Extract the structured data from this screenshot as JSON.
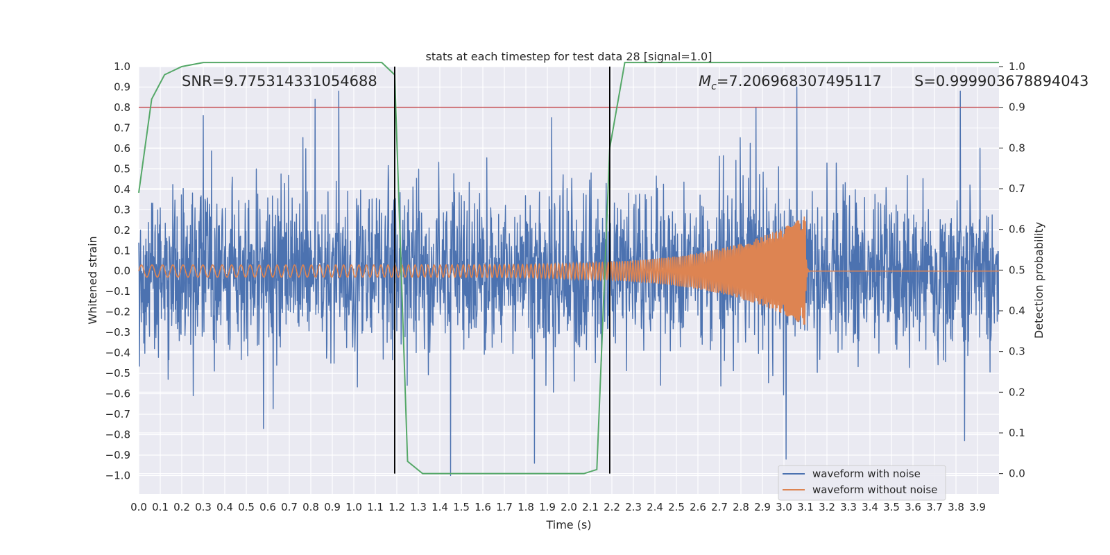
{
  "chart_data": {
    "type": "line",
    "title": "stats at each timestep for test data 28 [signal=1.0]",
    "xlabel": "Time (s)",
    "ylabel": "Whitened strain",
    "y2label": "Detection probability",
    "xlim": [
      0.0,
      4.0
    ],
    "ylim": [
      -1.09,
      1.0
    ],
    "y2lim": [
      -0.05,
      1.0
    ],
    "x_ticks": [
      "0.0",
      "0.1",
      "0.2",
      "0.3",
      "0.4",
      "0.5",
      "0.6",
      "0.7",
      "0.8",
      "0.9",
      "1.0",
      "1.1",
      "1.2",
      "1.3",
      "1.4",
      "1.5",
      "1.6",
      "1.7",
      "1.8",
      "1.9",
      "2.0",
      "2.1",
      "2.2",
      "2.3",
      "2.4",
      "2.5",
      "2.6",
      "2.7",
      "2.8",
      "2.9",
      "3.0",
      "3.1",
      "3.2",
      "3.3",
      "3.4",
      "3.5",
      "3.6",
      "3.7",
      "3.8",
      "3.9"
    ],
    "y_ticks": [
      "1.0",
      "0.9",
      "0.8",
      "0.7",
      "0.6",
      "0.5",
      "0.4",
      "0.3",
      "0.2",
      "0.1",
      "0.0",
      "−0.1",
      "−0.2",
      "−0.3",
      "−0.4",
      "−0.5",
      "−0.6",
      "−0.7",
      "−0.8",
      "−0.9",
      "−1.0"
    ],
    "y2_ticks": [
      "1.0",
      "0.9",
      "0.8",
      "0.7",
      "0.6",
      "0.5",
      "0.4",
      "0.3",
      "0.2",
      "0.1",
      "0.0"
    ],
    "grid": true,
    "legend_position": "bottom-right",
    "annotations": {
      "snr": "SNR=9.775314331054688",
      "mc": "=7.206968307495117",
      "mc_symbol": "M",
      "mc_sub": "c",
      "s": "S=0.999903678894043"
    },
    "threshold_y2": 0.9,
    "vertical_lines_x": [
      1.19,
      2.19
    ],
    "series": [
      {
        "name": "waveform with noise",
        "color": "#4c72b0",
        "description_type": "noise",
        "peaks": [
          [
            0.3,
            0.76
          ],
          [
            0.82,
            0.84
          ],
          [
            0.93,
            0.88
          ],
          [
            1.84,
            0.92
          ],
          [
            2.87,
            0.8
          ],
          [
            3.06,
            0.9
          ],
          [
            3.82,
            0.88
          ],
          [
            1.45,
            -1.0
          ],
          [
            1.84,
            -0.94
          ],
          [
            3.01,
            -0.92
          ],
          [
            3.84,
            -0.83
          ],
          [
            0.58,
            -0.77
          ]
        ]
      },
      {
        "name": "waveform without noise",
        "color": "#dd8452",
        "description_type": "chirp",
        "amplitude_start": 0.03,
        "amplitude_end": 0.27,
        "merger_time": 3.1
      },
      {
        "color": "#55a868",
        "axis": "right",
        "x": [
          0.0,
          0.06,
          0.12,
          0.2,
          0.3,
          0.5,
          0.8,
          1.13,
          1.19,
          1.25,
          1.32,
          1.4,
          1.6,
          1.8,
          2.0,
          2.07,
          2.13,
          2.19,
          2.26,
          2.5,
          3.0,
          3.5,
          4.0
        ],
        "y": [
          0.69,
          0.92,
          0.98,
          1.0,
          1.01,
          1.01,
          1.01,
          1.01,
          0.98,
          0.03,
          0.0,
          0.0,
          0.0,
          0.0,
          0.0,
          0.0,
          0.01,
          0.8,
          1.01,
          1.01,
          1.01,
          1.01,
          1.01
        ]
      }
    ]
  }
}
